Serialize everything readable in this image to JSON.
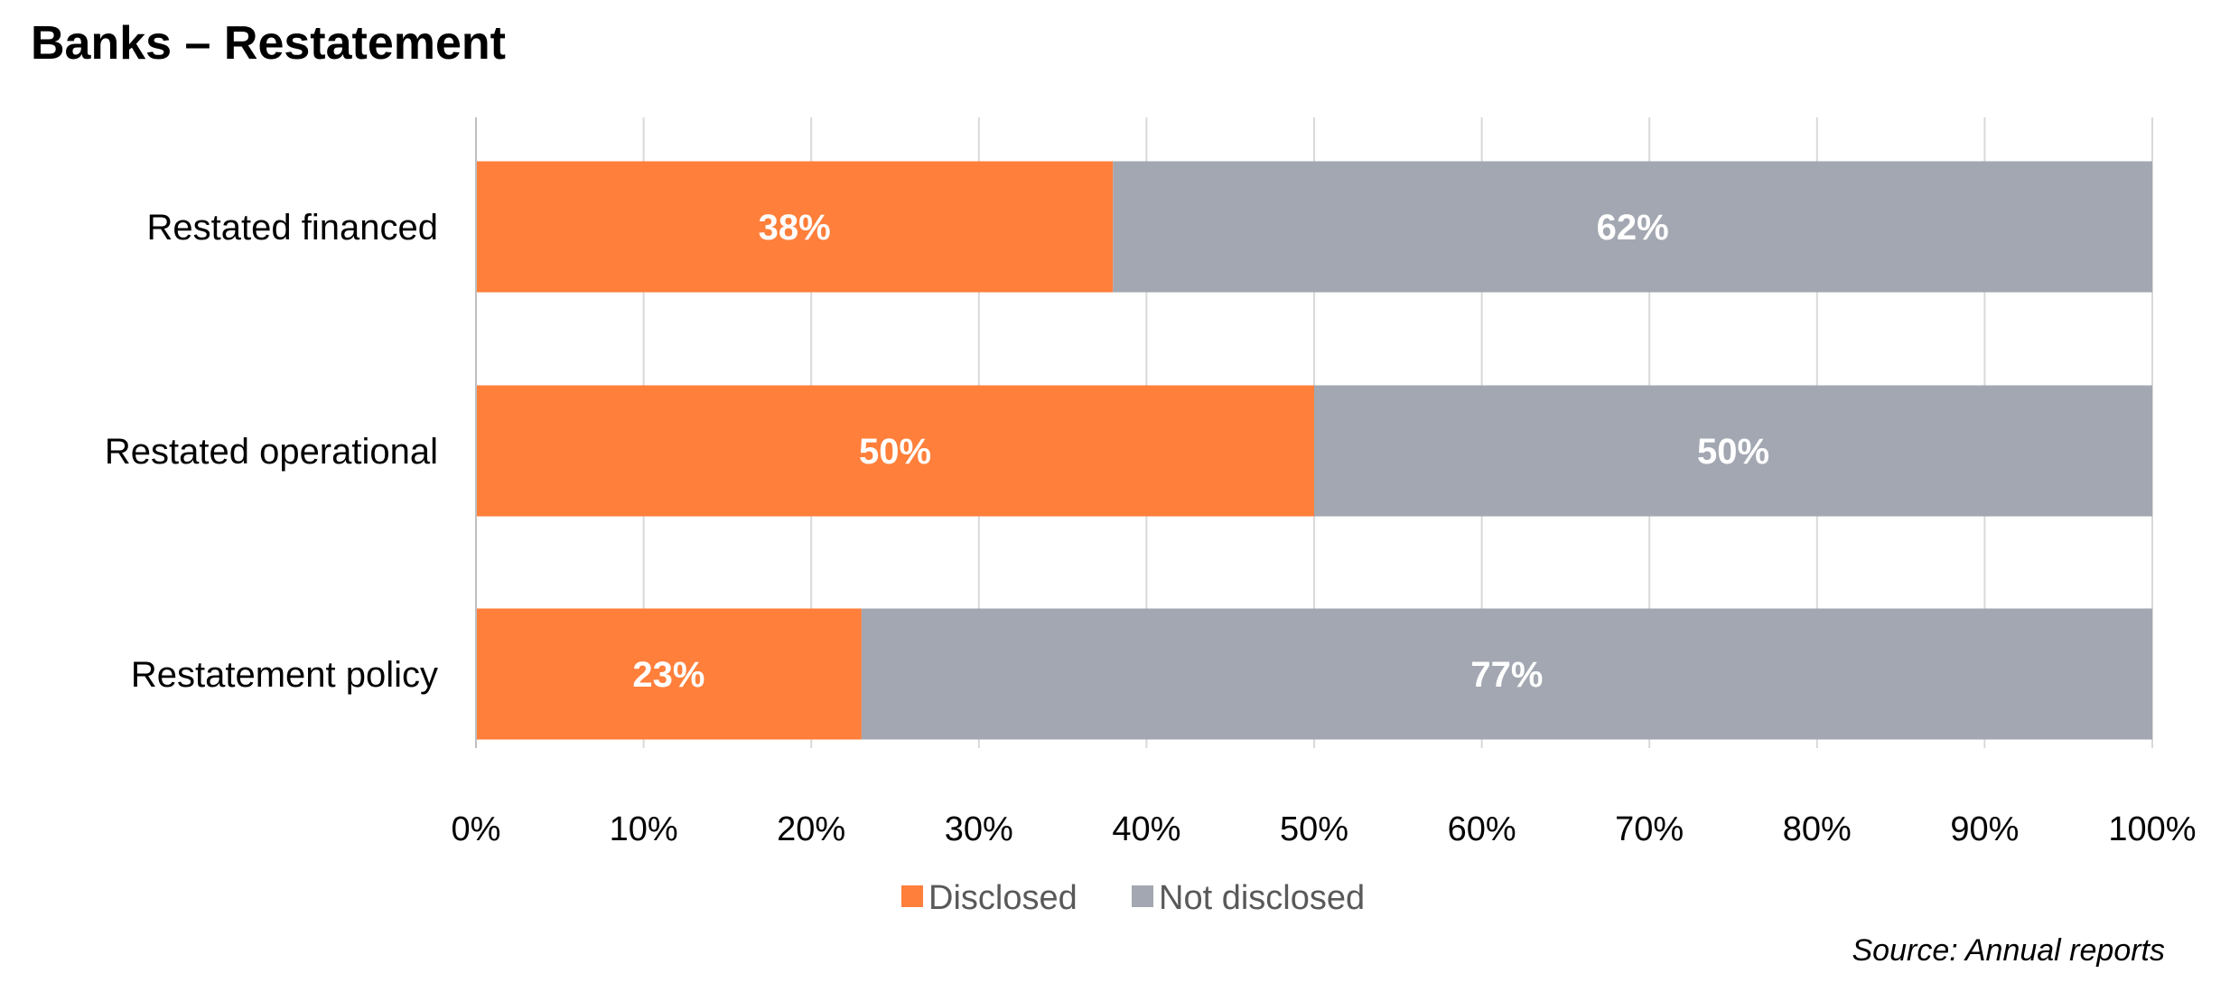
{
  "chart_data": {
    "type": "bar",
    "orientation": "horizontal",
    "stacked": true,
    "title": "Banks – Restatement",
    "categories": [
      "Restated financed",
      "Restated operational",
      "Restatement policy"
    ],
    "series": [
      {
        "name": "Disclosed",
        "color": "#FF7F3B",
        "values": [
          38,
          50,
          23
        ],
        "labels": [
          "38%",
          "50%",
          "23%"
        ]
      },
      {
        "name": "Not disclosed",
        "color": "#A2A7B1",
        "values": [
          62,
          50,
          77
        ],
        "labels": [
          "62%",
          "50%",
          "77%"
        ]
      }
    ],
    "xlim": [
      0,
      100
    ],
    "xticks": [
      0,
      10,
      20,
      30,
      40,
      50,
      60,
      70,
      80,
      90,
      100
    ],
    "xtick_labels": [
      "0%",
      "10%",
      "20%",
      "30%",
      "40%",
      "50%",
      "60%",
      "70%",
      "80%",
      "90%",
      "100%"
    ],
    "grid": true,
    "legend_position": "bottom",
    "source": "Source: Annual reports"
  }
}
